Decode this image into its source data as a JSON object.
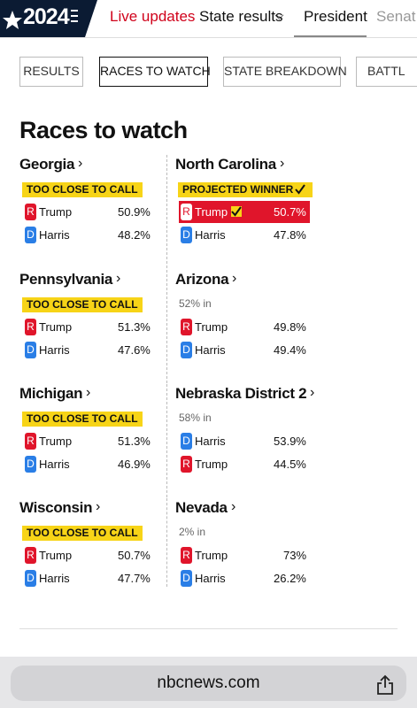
{
  "header": {
    "logo": "2024",
    "nav": [
      "Live updates",
      "State results",
      "President",
      "Senat"
    ]
  },
  "tabs": [
    "RESULTS",
    "RACES TO WATCH",
    "STATE BREAKDOWN",
    "BATTL"
  ],
  "section_title": "Races to watch",
  "races": [
    {
      "state": "Georgia",
      "status": "TOO CLOSE TO CALL",
      "candidates": [
        {
          "party": "R",
          "name": "Trump",
          "pct": "50.9%"
        },
        {
          "party": "D",
          "name": "Harris",
          "pct": "48.2%"
        }
      ]
    },
    {
      "state": "North Carolina",
      "status": "PROJECTED WINNER",
      "winner": 0,
      "candidates": [
        {
          "party": "R",
          "name": "Trump",
          "pct": "50.7%"
        },
        {
          "party": "D",
          "name": "Harris",
          "pct": "47.8%"
        }
      ]
    },
    {
      "state": "Pennsylvania",
      "status": "TOO CLOSE TO CALL",
      "candidates": [
        {
          "party": "R",
          "name": "Trump",
          "pct": "51.3%"
        },
        {
          "party": "D",
          "name": "Harris",
          "pct": "47.6%"
        }
      ]
    },
    {
      "state": "Arizona",
      "reporting": "52% in",
      "candidates": [
        {
          "party": "R",
          "name": "Trump",
          "pct": "49.8%"
        },
        {
          "party": "D",
          "name": "Harris",
          "pct": "49.4%"
        }
      ]
    },
    {
      "state": "Michigan",
      "status": "TOO CLOSE TO CALL",
      "candidates": [
        {
          "party": "R",
          "name": "Trump",
          "pct": "51.3%"
        },
        {
          "party": "D",
          "name": "Harris",
          "pct": "46.9%"
        }
      ]
    },
    {
      "state": "Nebraska District 2",
      "reporting": "58% in",
      "candidates": [
        {
          "party": "D",
          "name": "Harris",
          "pct": "53.9%"
        },
        {
          "party": "R",
          "name": "Trump",
          "pct": "44.5%"
        }
      ]
    },
    {
      "state": "Wisconsin",
      "status": "TOO CLOSE TO CALL",
      "candidates": [
        {
          "party": "R",
          "name": "Trump",
          "pct": "50.7%"
        },
        {
          "party": "D",
          "name": "Harris",
          "pct": "47.7%"
        }
      ]
    },
    {
      "state": "Nevada",
      "reporting": "2% in",
      "candidates": [
        {
          "party": "R",
          "name": "Trump",
          "pct": "73%"
        },
        {
          "party": "D",
          "name": "Harris",
          "pct": "26.2%"
        }
      ]
    }
  ],
  "browser": {
    "url": "nbcnews.com"
  }
}
